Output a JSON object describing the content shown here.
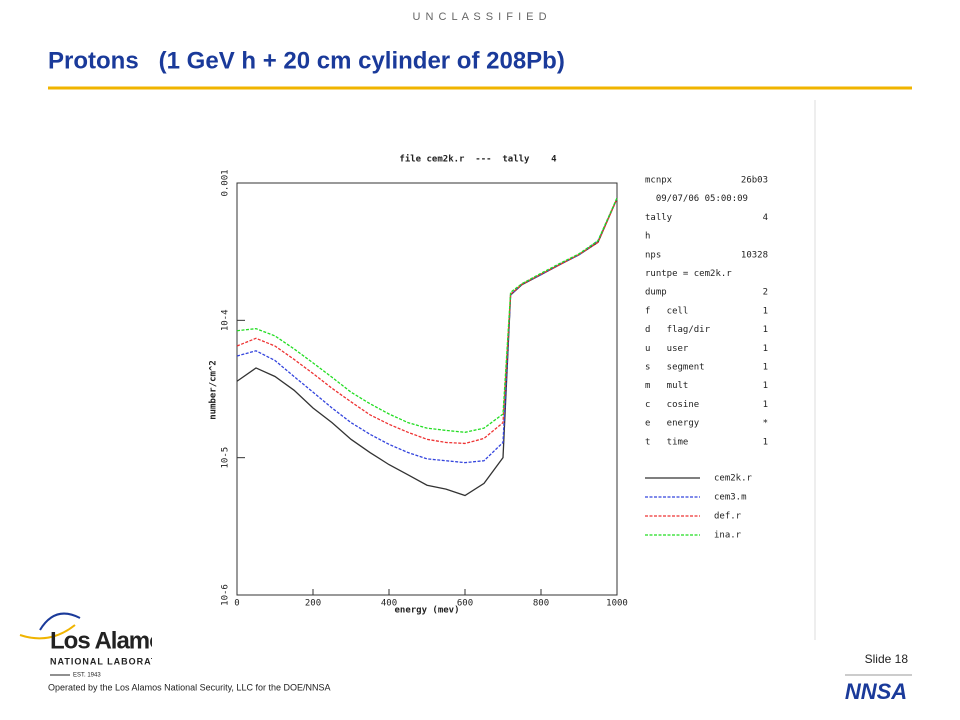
{
  "slide": {
    "classification": "U N C L A S S I F I E D",
    "title": "Protons   (1 GeV h + 20 cm cylinder of 208Pb)",
    "slide_number": "Slide 18",
    "footer": "Operated by the Los Alamos National Security, LLC for the DOE/NNSA",
    "logo_name": "Los Alamos",
    "logo_sub": "NATIONAL LABORATORY",
    "logo_est": "EST. 1943",
    "agency": "NNSA"
  },
  "chart_data": {
    "type": "line",
    "log_y": true,
    "title": "file cem2k.r  ---  tally    4",
    "x_label": "energy (mev)",
    "y_label": "number/cm^2",
    "x": [
      0,
      50,
      100,
      150,
      200,
      250,
      300,
      350,
      400,
      450,
      500,
      550,
      600,
      650,
      700,
      720,
      750,
      800,
      850,
      900,
      950,
      1000
    ],
    "series": [
      {
        "name": "cem2k.r",
        "color": "#333333",
        "values": [
          3.6e-05,
          4.5e-05,
          3.9e-05,
          3.1e-05,
          2.3e-05,
          1.8e-05,
          1.36e-05,
          1.09e-05,
          8.9e-06,
          7.5e-06,
          6.3e-06,
          5.9e-06,
          5.3e-06,
          6.5e-06,
          1e-05,
          0.000153,
          0.000182,
          0.000215,
          0.000255,
          0.0003,
          0.00037,
          0.00077
        ]
      },
      {
        "name": "cem3.m",
        "color": "#3344dd",
        "values": [
          5.5e-05,
          6e-05,
          5.1e-05,
          3.9e-05,
          3e-05,
          2.3e-05,
          1.8e-05,
          1.48e-05,
          1.25e-05,
          1.09e-05,
          9.8e-06,
          9.5e-06,
          9.2e-06,
          9.5e-06,
          1.29e-05,
          0.000153,
          0.000184,
          0.000215,
          0.000257,
          0.0003,
          0.00038,
          0.00077
        ]
      },
      {
        "name": "def.r",
        "color": "#ee3333",
        "values": [
          6.5e-05,
          7.4e-05,
          6.5e-05,
          5.2e-05,
          4.1e-05,
          3.2e-05,
          2.55e-05,
          2.05e-05,
          1.75e-05,
          1.53e-05,
          1.36e-05,
          1.29e-05,
          1.27e-05,
          1.38e-05,
          1.8e-05,
          0.000155,
          0.000183,
          0.000217,
          0.000255,
          0.000302,
          0.00037,
          0.00077
        ]
      },
      {
        "name": "ina.r",
        "color": "#22dd22",
        "values": [
          8.4e-05,
          8.7e-05,
          7.7e-05,
          6.2e-05,
          4.9e-05,
          3.85e-05,
          3e-05,
          2.47e-05,
          2.08e-05,
          1.8e-05,
          1.64e-05,
          1.58e-05,
          1.53e-05,
          1.64e-05,
          2.08e-05,
          0.00016,
          0.000185,
          0.00022,
          0.00026,
          0.000305,
          0.00038,
          0.00078
        ]
      }
    ],
    "xlim": [
      0,
      1000
    ],
    "xticks": [
      0,
      200,
      400,
      600,
      800,
      1000
    ],
    "ylim": [
      1e-06,
      0.001
    ],
    "yticks": [
      {
        "value": 1e-06,
        "label": "10-6"
      },
      {
        "value": 1e-05,
        "label": "10-5"
      },
      {
        "value": 0.0001,
        "label": "10-4"
      },
      0.001
    ],
    "info_lines": [
      {
        "label": "mcnpx",
        "value": "26b03"
      },
      {
        "label": "  09/07/06 05:00:09"
      },
      {
        "label": "tally",
        "value": "4"
      },
      {
        "label": "h"
      },
      {
        "label": "nps",
        "value": "10328"
      },
      {
        "label": "runtpe = cem2k.r"
      },
      {
        "label": "dump",
        "value": "2"
      },
      {
        "label": "f   cell",
        "value": "1"
      },
      {
        "label": "d   flag/dir",
        "value": "1"
      },
      {
        "label": "u   user",
        "value": "1"
      },
      {
        "label": "s   segment",
        "value": "1"
      },
      {
        "label": "m   mult",
        "value": "1"
      },
      {
        "label": "c   cosine",
        "value": "1"
      },
      {
        "label": "e   energy",
        "value": "*"
      },
      {
        "label": "t   time",
        "value": "1"
      }
    ]
  }
}
